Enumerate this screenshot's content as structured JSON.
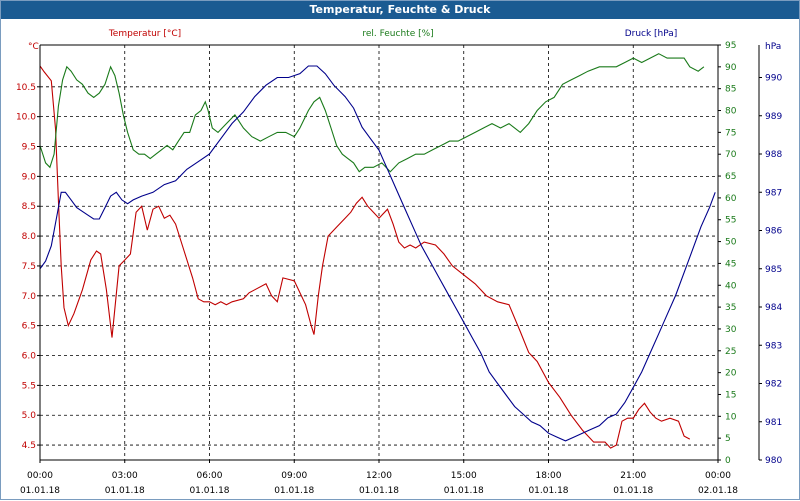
{
  "window": {
    "title": "Temperatur, Feuchte & Druck"
  },
  "colors": {
    "temperature": "#c00000",
    "humidity": "#1a7a1a",
    "pressure": "#00008b",
    "grid": "#000000",
    "axis": "#000000"
  },
  "chart_data": {
    "type": "line",
    "title": "Temperatur, Feuchte & Druck",
    "grid": true,
    "x_tick_labels": [
      [
        "00:00",
        "01.01.18"
      ],
      [
        "03:00",
        "01.01.18"
      ],
      [
        "06:00",
        "01.01.18"
      ],
      [
        "09:00",
        "01.01.18"
      ],
      [
        "12:00",
        "01.01.18"
      ],
      [
        "15:00",
        "01.01.18"
      ],
      [
        "18:00",
        "01.01.18"
      ],
      [
        "21:00",
        "01.01.18"
      ],
      [
        "00:00",
        "02.01.18"
      ]
    ],
    "axes": {
      "temperature": {
        "label": "Temperatur [°C]",
        "unit": "°C",
        "ylim": [
          4.25,
          11.2
        ],
        "ticks": [
          "4.5",
          "5.0",
          "5.5",
          "6.0",
          "6.5",
          "7.0",
          "7.5",
          "8.0",
          "8.5",
          "9.0",
          "9.5",
          "10.0",
          "10.5"
        ]
      },
      "humidity": {
        "label": "rel. Feuchte [%]",
        "unit": "%",
        "ylim": [
          0,
          95
        ],
        "ticks": [
          "0",
          "5",
          "10",
          "15",
          "20",
          "25",
          "30",
          "35",
          "40",
          "45",
          "50",
          "55",
          "60",
          "65",
          "70",
          "75",
          "80",
          "85",
          "90",
          "95"
        ]
      },
      "pressure": {
        "label": "Druck [hPa]",
        "unit": "hPa",
        "ylim": [
          980,
          990.85
        ],
        "ticks": [
          "980",
          "981",
          "982",
          "983",
          "984",
          "985",
          "986",
          "987",
          "988",
          "989",
          "990"
        ]
      }
    },
    "series": [
      {
        "name": "Temperatur [°C]",
        "axis": "temperature",
        "color": "#c00000",
        "points": [
          [
            0,
            10.85
          ],
          [
            0.15,
            10.75
          ],
          [
            0.4,
            10.6
          ],
          [
            0.55,
            9.8
          ],
          [
            0.65,
            8.6
          ],
          [
            0.75,
            7.5
          ],
          [
            0.85,
            6.8
          ],
          [
            1.0,
            6.5
          ],
          [
            1.2,
            6.7
          ],
          [
            1.5,
            7.1
          ],
          [
            1.8,
            7.6
          ],
          [
            2.0,
            7.75
          ],
          [
            2.15,
            7.7
          ],
          [
            2.35,
            7.1
          ],
          [
            2.55,
            6.3
          ],
          [
            2.8,
            7.5
          ],
          [
            3.0,
            7.6
          ],
          [
            3.2,
            7.7
          ],
          [
            3.4,
            8.4
          ],
          [
            3.6,
            8.5
          ],
          [
            3.8,
            8.1
          ],
          [
            4.0,
            8.45
          ],
          [
            4.2,
            8.5
          ],
          [
            4.4,
            8.3
          ],
          [
            4.6,
            8.35
          ],
          [
            4.8,
            8.2
          ],
          [
            5.1,
            7.75
          ],
          [
            5.4,
            7.3
          ],
          [
            5.6,
            6.95
          ],
          [
            5.8,
            6.9
          ],
          [
            6.0,
            6.9
          ],
          [
            6.2,
            6.85
          ],
          [
            6.4,
            6.9
          ],
          [
            6.6,
            6.85
          ],
          [
            6.8,
            6.9
          ],
          [
            7.2,
            6.95
          ],
          [
            7.4,
            7.05
          ],
          [
            7.6,
            7.1
          ],
          [
            8.0,
            7.2
          ],
          [
            8.2,
            7.0
          ],
          [
            8.4,
            6.9
          ],
          [
            8.6,
            7.3
          ],
          [
            9.0,
            7.25
          ],
          [
            9.4,
            6.85
          ],
          [
            9.6,
            6.5
          ],
          [
            9.7,
            6.35
          ],
          [
            9.85,
            7.0
          ],
          [
            10.0,
            7.5
          ],
          [
            10.2,
            8.0
          ],
          [
            10.5,
            8.15
          ],
          [
            10.8,
            8.3
          ],
          [
            11.0,
            8.4
          ],
          [
            11.2,
            8.55
          ],
          [
            11.4,
            8.65
          ],
          [
            11.6,
            8.5
          ],
          [
            11.8,
            8.4
          ],
          [
            12.0,
            8.3
          ],
          [
            12.3,
            8.45
          ],
          [
            12.5,
            8.2
          ],
          [
            12.7,
            7.9
          ],
          [
            12.9,
            7.8
          ],
          [
            13.1,
            7.85
          ],
          [
            13.3,
            7.8
          ],
          [
            13.6,
            7.9
          ],
          [
            14.0,
            7.85
          ],
          [
            14.3,
            7.7
          ],
          [
            14.6,
            7.5
          ],
          [
            15.0,
            7.35
          ],
          [
            15.4,
            7.2
          ],
          [
            15.8,
            7.0
          ],
          [
            16.2,
            6.9
          ],
          [
            16.6,
            6.85
          ],
          [
            17.0,
            6.4
          ],
          [
            17.3,
            6.05
          ],
          [
            17.6,
            5.9
          ],
          [
            18.0,
            5.55
          ],
          [
            18.4,
            5.3
          ],
          [
            18.8,
            5.0
          ],
          [
            19.2,
            4.75
          ],
          [
            19.6,
            4.55
          ],
          [
            20.0,
            4.55
          ],
          [
            20.2,
            4.45
          ],
          [
            20.4,
            4.5
          ],
          [
            20.6,
            4.9
          ],
          [
            20.8,
            4.95
          ],
          [
            21.0,
            4.95
          ],
          [
            21.2,
            5.1
          ],
          [
            21.4,
            5.2
          ],
          [
            21.6,
            5.05
          ],
          [
            21.8,
            4.95
          ],
          [
            22.0,
            4.9
          ],
          [
            22.3,
            4.95
          ],
          [
            22.6,
            4.9
          ],
          [
            22.8,
            4.65
          ],
          [
            23.0,
            4.6
          ]
        ]
      },
      {
        "name": "rel. Feuchte [%]",
        "axis": "humidity",
        "color": "#1a7a1a",
        "points": [
          [
            0,
            72
          ],
          [
            0.2,
            68
          ],
          [
            0.35,
            67
          ],
          [
            0.5,
            70
          ],
          [
            0.65,
            81
          ],
          [
            0.8,
            87
          ],
          [
            0.95,
            90
          ],
          [
            1.1,
            89
          ],
          [
            1.3,
            87
          ],
          [
            1.5,
            86
          ],
          [
            1.7,
            84
          ],
          [
            1.9,
            83
          ],
          [
            2.1,
            84
          ],
          [
            2.3,
            86
          ],
          [
            2.5,
            90
          ],
          [
            2.65,
            88
          ],
          [
            2.8,
            84
          ],
          [
            2.95,
            79
          ],
          [
            3.1,
            75
          ],
          [
            3.3,
            71
          ],
          [
            3.5,
            70
          ],
          [
            3.7,
            70
          ],
          [
            3.9,
            69
          ],
          [
            4.1,
            70
          ],
          [
            4.3,
            71
          ],
          [
            4.5,
            72
          ],
          [
            4.7,
            71
          ],
          [
            4.9,
            73
          ],
          [
            5.1,
            75
          ],
          [
            5.3,
            75
          ],
          [
            5.5,
            79
          ],
          [
            5.7,
            80
          ],
          [
            5.85,
            82
          ],
          [
            5.95,
            80
          ],
          [
            6.1,
            76
          ],
          [
            6.3,
            75
          ],
          [
            6.6,
            77
          ],
          [
            6.9,
            79
          ],
          [
            7.2,
            76
          ],
          [
            7.5,
            74
          ],
          [
            7.8,
            73
          ],
          [
            8.1,
            74
          ],
          [
            8.4,
            75
          ],
          [
            8.7,
            75
          ],
          [
            9.0,
            74
          ],
          [
            9.2,
            76
          ],
          [
            9.5,
            80
          ],
          [
            9.7,
            82
          ],
          [
            9.9,
            83
          ],
          [
            10.1,
            80
          ],
          [
            10.3,
            76
          ],
          [
            10.5,
            72
          ],
          [
            10.7,
            70
          ],
          [
            10.9,
            69
          ],
          [
            11.1,
            68
          ],
          [
            11.3,
            66
          ],
          [
            11.5,
            67
          ],
          [
            11.8,
            67
          ],
          [
            12.1,
            68
          ],
          [
            12.4,
            66
          ],
          [
            12.7,
            68
          ],
          [
            13.0,
            69
          ],
          [
            13.3,
            70
          ],
          [
            13.6,
            70
          ],
          [
            13.9,
            71
          ],
          [
            14.2,
            72
          ],
          [
            14.5,
            73
          ],
          [
            14.8,
            73
          ],
          [
            15.1,
            74
          ],
          [
            15.4,
            75
          ],
          [
            15.7,
            76
          ],
          [
            16.0,
            77
          ],
          [
            16.3,
            76
          ],
          [
            16.6,
            77
          ],
          [
            17.0,
            75
          ],
          [
            17.3,
            77
          ],
          [
            17.6,
            80
          ],
          [
            17.9,
            82
          ],
          [
            18.2,
            83
          ],
          [
            18.5,
            86
          ],
          [
            18.8,
            87
          ],
          [
            19.1,
            88
          ],
          [
            19.4,
            89
          ],
          [
            19.8,
            90
          ],
          [
            20.1,
            90
          ],
          [
            20.4,
            90
          ],
          [
            20.7,
            91
          ],
          [
            21.0,
            92
          ],
          [
            21.3,
            91
          ],
          [
            21.6,
            92
          ],
          [
            21.9,
            93
          ],
          [
            22.2,
            92
          ],
          [
            22.5,
            92
          ],
          [
            22.8,
            92
          ],
          [
            23.0,
            90
          ],
          [
            23.3,
            89
          ],
          [
            23.5,
            90
          ]
        ]
      },
      {
        "name": "Druck [hPa]",
        "axis": "pressure",
        "color": "#00008b",
        "points": [
          [
            0,
            985.0
          ],
          [
            0.2,
            985.2
          ],
          [
            0.4,
            985.6
          ],
          [
            0.6,
            986.4
          ],
          [
            0.75,
            987.0
          ],
          [
            0.9,
            987.0
          ],
          [
            1.1,
            986.8
          ],
          [
            1.3,
            986.6
          ],
          [
            1.5,
            986.5
          ],
          [
            1.7,
            986.4
          ],
          [
            1.9,
            986.3
          ],
          [
            2.1,
            986.3
          ],
          [
            2.3,
            986.6
          ],
          [
            2.5,
            986.9
          ],
          [
            2.7,
            987.0
          ],
          [
            2.9,
            986.8
          ],
          [
            3.1,
            986.7
          ],
          [
            3.3,
            986.8
          ],
          [
            3.6,
            986.9
          ],
          [
            4.0,
            987.0
          ],
          [
            4.4,
            987.2
          ],
          [
            4.8,
            987.3
          ],
          [
            5.2,
            987.6
          ],
          [
            5.6,
            987.8
          ],
          [
            6.0,
            988.0
          ],
          [
            6.4,
            988.4
          ],
          [
            6.8,
            988.8
          ],
          [
            7.2,
            989.1
          ],
          [
            7.6,
            989.5
          ],
          [
            8.0,
            989.8
          ],
          [
            8.4,
            990.0
          ],
          [
            8.8,
            990.0
          ],
          [
            9.2,
            990.1
          ],
          [
            9.5,
            990.3
          ],
          [
            9.8,
            990.3
          ],
          [
            10.1,
            990.1
          ],
          [
            10.4,
            989.8
          ],
          [
            10.8,
            989.5
          ],
          [
            11.1,
            989.2
          ],
          [
            11.4,
            988.7
          ],
          [
            11.7,
            988.4
          ],
          [
            12.0,
            988.1
          ],
          [
            12.3,
            987.6
          ],
          [
            12.6,
            987.1
          ],
          [
            12.9,
            986.6
          ],
          [
            13.2,
            986.1
          ],
          [
            13.5,
            985.6
          ],
          [
            13.8,
            985.2
          ],
          [
            14.1,
            984.8
          ],
          [
            14.4,
            984.4
          ],
          [
            14.7,
            984.0
          ],
          [
            15.0,
            983.6
          ],
          [
            15.3,
            983.2
          ],
          [
            15.6,
            982.8
          ],
          [
            15.9,
            982.3
          ],
          [
            16.2,
            982.0
          ],
          [
            16.5,
            981.7
          ],
          [
            16.8,
            981.4
          ],
          [
            17.1,
            981.2
          ],
          [
            17.4,
            981.0
          ],
          [
            17.7,
            980.9
          ],
          [
            18.0,
            980.7
          ],
          [
            18.3,
            980.6
          ],
          [
            18.6,
            980.5
          ],
          [
            18.9,
            980.6
          ],
          [
            19.2,
            980.7
          ],
          [
            19.5,
            980.8
          ],
          [
            19.8,
            980.9
          ],
          [
            20.1,
            981.1
          ],
          [
            20.4,
            981.2
          ],
          [
            20.7,
            981.5
          ],
          [
            21.0,
            981.9
          ],
          [
            21.3,
            982.3
          ],
          [
            21.6,
            982.8
          ],
          [
            21.9,
            983.3
          ],
          [
            22.2,
            983.8
          ],
          [
            22.5,
            984.3
          ],
          [
            22.8,
            984.9
          ],
          [
            23.1,
            985.5
          ],
          [
            23.4,
            986.1
          ],
          [
            23.7,
            986.6
          ],
          [
            23.9,
            987.0
          ]
        ]
      }
    ]
  }
}
